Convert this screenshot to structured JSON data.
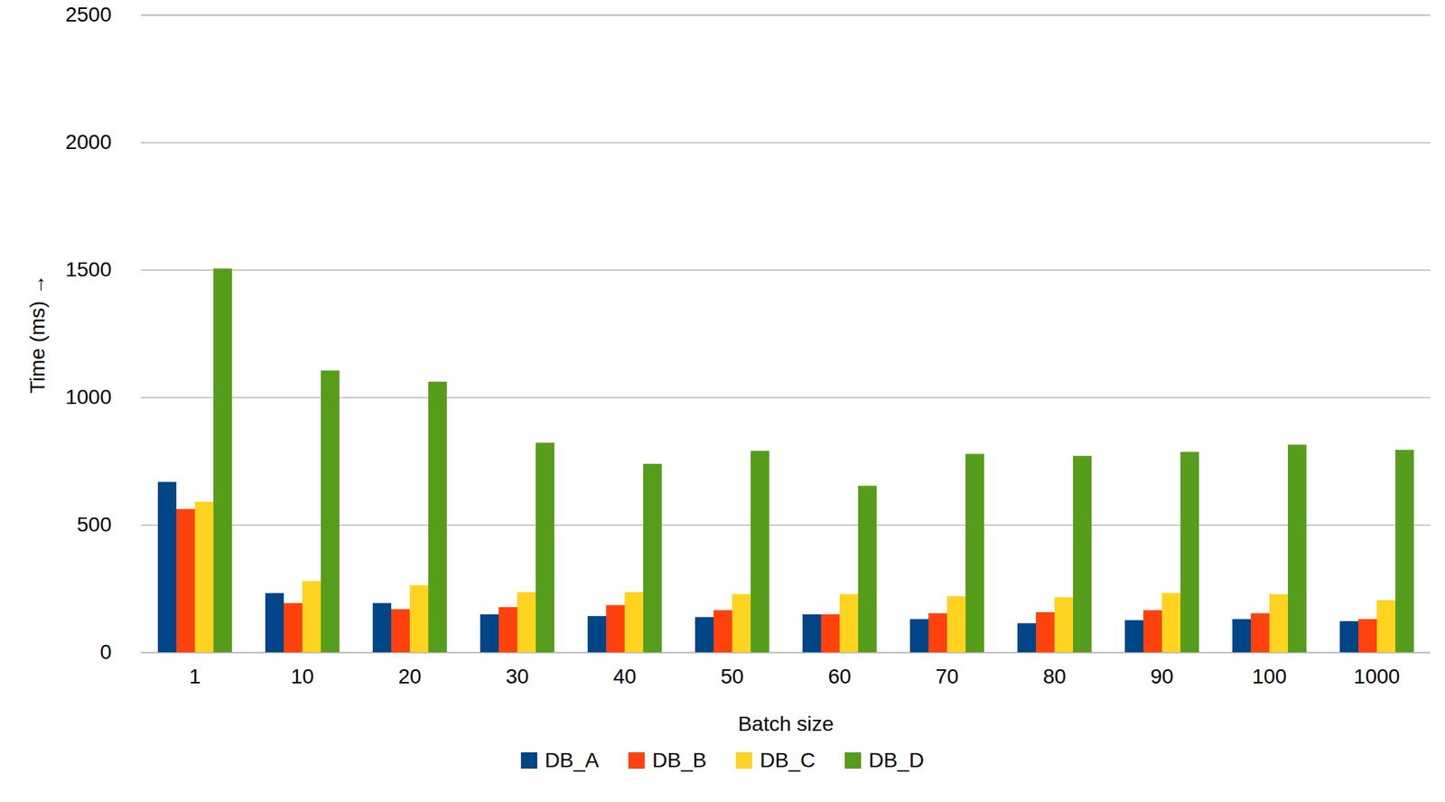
{
  "chart_data": {
    "type": "bar",
    "x_label": "Batch size",
    "y_label": "Time (ms)",
    "categories": [
      "1",
      "10",
      "20",
      "30",
      "40",
      "50",
      "60",
      "70",
      "80",
      "90",
      "100",
      "1000"
    ],
    "series": [
      {
        "name": "DB_A",
        "color": "#004586",
        "values": [
          668,
          232,
          193,
          149,
          142,
          138,
          149,
          130,
          114,
          126,
          130,
          122
        ]
      },
      {
        "name": "DB_B",
        "color": "#ff420e",
        "values": [
          562,
          193,
          169,
          177,
          185,
          165,
          149,
          153,
          157,
          165,
          153,
          130
        ]
      },
      {
        "name": "DB_C",
        "color": "#ffd320",
        "values": [
          590,
          279,
          263,
          236,
          236,
          228,
          228,
          220,
          216,
          232,
          228,
          204
        ]
      },
      {
        "name": "DB_D",
        "color": "#579d1c",
        "values": [
          1505,
          1105,
          1061,
          822,
          739,
          790,
          653,
          778,
          770,
          786,
          814,
          794
        ]
      }
    ],
    "ylim": [
      0,
      2500
    ],
    "yticks": [
      0,
      500,
      1000,
      1500,
      2000,
      2500
    ],
    "grid": true,
    "legend": "bottom"
  }
}
